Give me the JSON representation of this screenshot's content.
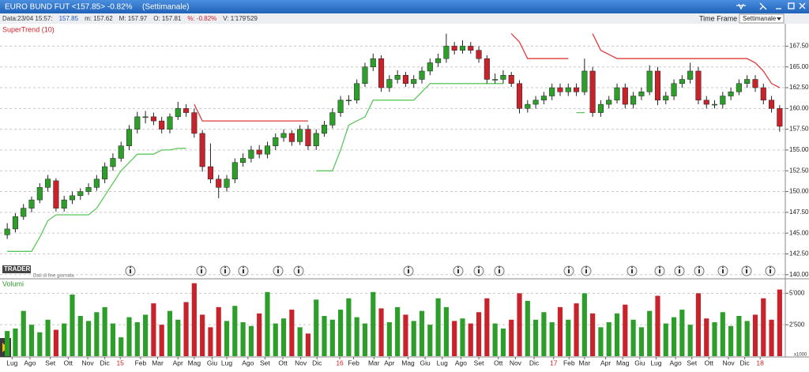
{
  "header": {
    "title": "EURO BUND FUT <157.85> -0.82%",
    "period": "(Settimanale)",
    "time_frame_label": "Time Frame",
    "time_frame_value": "Settimanale"
  },
  "info_bar": [
    "Data:23/04 15:57:",
    "157.85",
    "m: 157.62",
    "M: 157.97",
    "O: 157.81",
    "%: -0.82%",
    "V: 1'179'529"
  ],
  "chart_data": {
    "type": "candlestick",
    "indicator_label": "SuperTrend (10)",
    "watermark": "TRADER LINK",
    "watermark_note": "Dati di fine giornata",
    "up_color": "#2e9e2a",
    "down_color": "#c8222a",
    "grid": true,
    "ylim": [
      139.6,
      170.2
    ],
    "yticks": [
      {
        "value": 140,
        "label": "140.00"
      },
      {
        "value": 142.5,
        "label": "142.50"
      },
      {
        "value": 145,
        "label": "145.00"
      },
      {
        "value": 147.5,
        "label": "147.50"
      },
      {
        "value": 150,
        "label": "150.00"
      },
      {
        "value": 152.5,
        "label": "152.50"
      },
      {
        "value": 155,
        "label": "155.00"
      },
      {
        "value": 157.5,
        "label": "157.50"
      },
      {
        "value": 160,
        "label": "160.00"
      },
      {
        "value": 162.5,
        "label": "162.50"
      },
      {
        "value": 165,
        "label": "165.00"
      },
      {
        "value": 167.5,
        "label": "167.50"
      }
    ],
    "xticks": [
      {
        "value": 0.6,
        "label": "Lug"
      },
      {
        "value": 2.8,
        "label": "Ago"
      },
      {
        "value": 5.3,
        "label": "Set"
      },
      {
        "value": 7.5,
        "label": "Ott"
      },
      {
        "value": 9.9,
        "label": "Nov"
      },
      {
        "value": 12,
        "label": "Dic"
      },
      {
        "value": 13.9,
        "label": "15"
      },
      {
        "value": 16.4,
        "label": "Feb"
      },
      {
        "value": 18.5,
        "label": "Mar"
      },
      {
        "value": 21,
        "label": "Apr"
      },
      {
        "value": 23,
        "label": "Mag"
      },
      {
        "value": 25.2,
        "label": "Giu"
      },
      {
        "value": 27,
        "label": "Lug"
      },
      {
        "value": 29.6,
        "label": "Ago"
      },
      {
        "value": 31.7,
        "label": "Set"
      },
      {
        "value": 33.9,
        "label": "Ott"
      },
      {
        "value": 36.1,
        "label": "Nov"
      },
      {
        "value": 38.1,
        "label": "Dic"
      },
      {
        "value": 40.9,
        "label": "16"
      },
      {
        "value": 42.6,
        "label": "Feb"
      },
      {
        "value": 45.1,
        "label": "Mar"
      },
      {
        "value": 47,
        "label": "Apr"
      },
      {
        "value": 49.3,
        "label": "Mag"
      },
      {
        "value": 51.4,
        "label": "Giu"
      },
      {
        "value": 53.5,
        "label": "Lug"
      },
      {
        "value": 55.8,
        "label": "Ago"
      },
      {
        "value": 58,
        "label": "Set"
      },
      {
        "value": 60.4,
        "label": "Ott"
      },
      {
        "value": 62.5,
        "label": "Nov"
      },
      {
        "value": 64.8,
        "label": "Dic"
      },
      {
        "value": 67.2,
        "label": "17"
      },
      {
        "value": 69.1,
        "label": "Feb"
      },
      {
        "value": 71,
        "label": "Mar"
      },
      {
        "value": 73.6,
        "label": "Apr"
      },
      {
        "value": 75.7,
        "label": "Mag"
      },
      {
        "value": 77.8,
        "label": "Giu"
      },
      {
        "value": 79.8,
        "label": "Lug"
      },
      {
        "value": 82.2,
        "label": "Ago"
      },
      {
        "value": 84.2,
        "label": "Set"
      },
      {
        "value": 86.3,
        "label": "Ott"
      },
      {
        "value": 88.7,
        "label": "Nov"
      },
      {
        "value": 90.7,
        "label": "Dic"
      },
      {
        "value": 92.6,
        "label": "18"
      }
    ],
    "candles": [
      [
        144.8,
        146.2,
        144.3,
        145.5
      ],
      [
        145.5,
        147.4,
        145.1,
        147
      ],
      [
        147,
        148.5,
        146.6,
        148
      ],
      [
        148,
        149.4,
        147.5,
        149
      ],
      [
        149,
        151,
        148.6,
        150.5
      ],
      [
        150.5,
        152,
        150,
        151.5
      ],
      [
        151.3,
        151.6,
        147.6,
        148
      ],
      [
        148,
        149.5,
        147.6,
        149
      ],
      [
        149,
        150,
        148.5,
        149.5
      ],
      [
        149.5,
        150.4,
        149,
        150
      ],
      [
        150,
        151,
        149.6,
        150.5
      ],
      [
        150.5,
        152,
        150.1,
        151.5
      ],
      [
        151.5,
        153.5,
        151,
        153
      ],
      [
        153,
        154.6,
        152.5,
        154
      ],
      [
        154,
        156,
        153.6,
        155.5
      ],
      [
        155.5,
        158,
        155,
        157.5
      ],
      [
        157.5,
        159.6,
        157,
        159
      ],
      [
        159,
        159.7,
        158.2,
        159
      ],
      [
        159,
        159.5,
        158,
        158.5
      ],
      [
        158.5,
        159,
        157,
        157.5
      ],
      [
        157.5,
        159.4,
        157,
        159
      ],
      [
        159,
        160.8,
        158.6,
        160
      ],
      [
        160,
        160.5,
        159,
        159.5
      ],
      [
        159.5,
        160,
        156.5,
        157
      ],
      [
        157,
        157.4,
        152.4,
        153
      ],
      [
        153,
        155.8,
        151,
        151.5
      ],
      [
        151.5,
        152,
        149.2,
        150.5
      ],
      [
        150.5,
        152,
        150,
        151.5
      ],
      [
        151.5,
        154,
        151,
        153.5
      ],
      [
        153.5,
        154.6,
        153,
        154
      ],
      [
        154,
        155.5,
        153.5,
        155
      ],
      [
        155,
        155.6,
        154,
        154.5
      ],
      [
        154.5,
        156,
        154,
        155.5
      ],
      [
        155.5,
        157,
        155,
        156.5
      ],
      [
        156.5,
        157.5,
        156,
        157
      ],
      [
        157,
        157.4,
        155.5,
        156
      ],
      [
        156,
        158,
        155.6,
        157.5
      ],
      [
        157.5,
        158,
        155,
        155.5
      ],
      [
        155.5,
        157.5,
        155,
        157
      ],
      [
        157,
        158.5,
        156.6,
        158
      ],
      [
        158,
        160,
        157.6,
        159.5
      ],
      [
        159.5,
        161.5,
        159,
        161
      ],
      [
        161,
        161.6,
        160.4,
        161
      ],
      [
        161,
        163.5,
        160.6,
        163
      ],
      [
        163,
        165.5,
        162.6,
        165
      ],
      [
        165,
        166.6,
        164.5,
        166
      ],
      [
        166,
        166.4,
        162,
        162.5
      ],
      [
        162.5,
        164,
        162,
        163.5
      ],
      [
        163.5,
        164.6,
        163,
        164
      ],
      [
        164,
        164.4,
        162.6,
        163
      ],
      [
        163,
        164,
        162.5,
        163.5
      ],
      [
        163.5,
        165,
        163,
        164.5
      ],
      [
        164.5,
        166,
        164,
        165.5
      ],
      [
        165.5,
        166.6,
        165,
        166
      ],
      [
        166,
        169,
        165.5,
        167.5
      ],
      [
        167.5,
        168,
        166.5,
        167
      ],
      [
        167,
        168.2,
        166.6,
        167.5
      ],
      [
        167.5,
        168,
        166.6,
        167
      ],
      [
        167,
        167.5,
        165.5,
        166
      ],
      [
        166,
        166.4,
        163,
        163.5
      ],
      [
        163.5,
        164.2,
        163,
        163.5
      ],
      [
        163.5,
        164.6,
        163,
        164
      ],
      [
        164,
        164.4,
        162.6,
        163
      ],
      [
        163,
        163.4,
        159.4,
        160
      ],
      [
        160,
        161,
        159.5,
        160.5
      ],
      [
        160.5,
        161.5,
        160,
        161
      ],
      [
        161,
        162,
        160.5,
        161.5
      ],
      [
        161.5,
        163,
        161,
        162.5
      ],
      [
        162.5,
        163,
        161.5,
        162
      ],
      [
        162,
        163,
        161.5,
        162.5
      ],
      [
        162.5,
        163,
        161.5,
        162
      ],
      [
        162,
        166,
        161.6,
        164.5
      ],
      [
        164.5,
        165,
        159,
        159.5
      ],
      [
        159.5,
        161,
        159,
        160.5
      ],
      [
        160.5,
        161.5,
        160,
        161
      ],
      [
        161,
        163,
        160.6,
        162.5
      ],
      [
        162.5,
        163,
        160,
        160.5
      ],
      [
        160.5,
        162,
        160,
        161.5
      ],
      [
        161.5,
        162.5,
        161,
        162
      ],
      [
        162,
        165.2,
        161.6,
        164.5
      ],
      [
        164.5,
        165,
        160.4,
        161
      ],
      [
        161,
        162,
        160.5,
        161.5
      ],
      [
        161.5,
        163.5,
        161,
        163
      ],
      [
        163,
        164,
        162.5,
        163.5
      ],
      [
        163.5,
        165.5,
        163,
        164.5
      ],
      [
        164.5,
        165,
        160.5,
        161
      ],
      [
        161,
        161.5,
        160,
        160.5
      ],
      [
        160.5,
        161,
        160,
        160.5
      ],
      [
        160.5,
        162,
        160,
        161.5
      ],
      [
        161.5,
        162.5,
        161,
        162
      ],
      [
        162,
        163.5,
        161.6,
        163
      ],
      [
        163,
        164,
        162.5,
        163.5
      ],
      [
        163.5,
        164,
        162,
        162.5
      ],
      [
        162.5,
        163,
        160.5,
        161
      ],
      [
        161,
        161.5,
        159.5,
        160
      ],
      [
        160,
        160.4,
        157.2,
        157.85
      ]
    ],
    "supertrend": {
      "up_color": "#5cc85c",
      "down_color": "#e03a3a",
      "up": [
        142.8,
        142.8,
        142.8,
        142.8,
        144.5,
        146.5,
        147.2,
        147.2,
        147.2,
        147.2,
        147.2,
        148,
        149.5,
        151,
        152.5,
        153.5,
        154.5,
        154.5,
        154.5,
        155,
        155,
        155.2,
        155.2,
        null,
        null,
        null,
        null,
        null,
        null,
        null,
        null,
        null,
        null,
        null,
        null,
        null,
        null,
        null,
        152.5,
        152.5,
        152.5,
        155,
        158,
        158.5,
        159,
        161,
        161,
        161,
        161,
        161,
        161,
        162,
        163,
        163,
        163,
        163,
        163,
        163,
        163,
        163,
        163,
        163,
        null,
        null,
        null,
        null,
        null,
        null,
        null,
        null,
        159.5,
        159.5,
        null,
        null,
        null,
        null,
        null,
        null,
        null,
        null,
        null,
        null,
        null,
        null,
        null,
        null,
        null,
        null,
        null,
        null,
        null,
        null,
        null,
        null,
        null,
        null
      ],
      "down": [
        null,
        null,
        null,
        null,
        null,
        null,
        null,
        null,
        null,
        null,
        null,
        null,
        null,
        null,
        null,
        null,
        null,
        null,
        null,
        null,
        null,
        null,
        null,
        160.5,
        158.5,
        158.5,
        158.5,
        158.5,
        158.5,
        158.5,
        158.5,
        158.5,
        158.5,
        158.5,
        158.5,
        158.5,
        158.5,
        158.5,
        null,
        null,
        null,
        null,
        null,
        null,
        null,
        null,
        null,
        null,
        null,
        null,
        null,
        null,
        null,
        null,
        null,
        null,
        null,
        null,
        null,
        null,
        null,
        null,
        169,
        168,
        166,
        166,
        166,
        166,
        166,
        166,
        null,
        null,
        169,
        167,
        166.5,
        166,
        166,
        166,
        166,
        166,
        166,
        166,
        166,
        166,
        166,
        166,
        166,
        166,
        166,
        166,
        166,
        166,
        165.5,
        164.5,
        163,
        162.5
      ]
    },
    "volume": {
      "label": "Volumi",
      "unit_label": "x1000",
      "ylim": [
        0,
        5900
      ],
      "yticks": [
        {
          "value": 2500,
          "label": "2'500"
        },
        {
          "value": 5000,
          "label": "5'000"
        }
      ],
      "values": [
        2000,
        2200,
        3600,
        2500,
        1900,
        2900,
        2100,
        2600,
        4900,
        3200,
        2800,
        3500,
        3900,
        2600,
        1500,
        3100,
        2700,
        3300,
        4200,
        2500,
        3600,
        2900,
        4300,
        5800,
        3300,
        2300,
        3900,
        2800,
        4000,
        2700,
        2400,
        3400,
        5100,
        2600,
        3000,
        3700,
        2300,
        1800,
        4500,
        3200,
        2900,
        3700,
        4600,
        3100,
        2600,
        5100,
        3800,
        2700,
        3900,
        3300,
        2800,
        3600,
        2500,
        4600,
        3900,
        2800,
        3000,
        2600,
        3500,
        4600,
        2600,
        2200,
        2900,
        5000,
        4400,
        2900,
        3500,
        2700,
        3900,
        2900,
        4200,
        5000,
        3400,
        2300,
        2700,
        3400,
        4100,
        2900,
        2300,
        3600,
        4800,
        2600,
        3100,
        3700,
        2500,
        5000,
        3000,
        2700,
        3500,
        2400,
        3200,
        2800,
        3300,
        4600,
        2900,
        5300
      ]
    }
  }
}
